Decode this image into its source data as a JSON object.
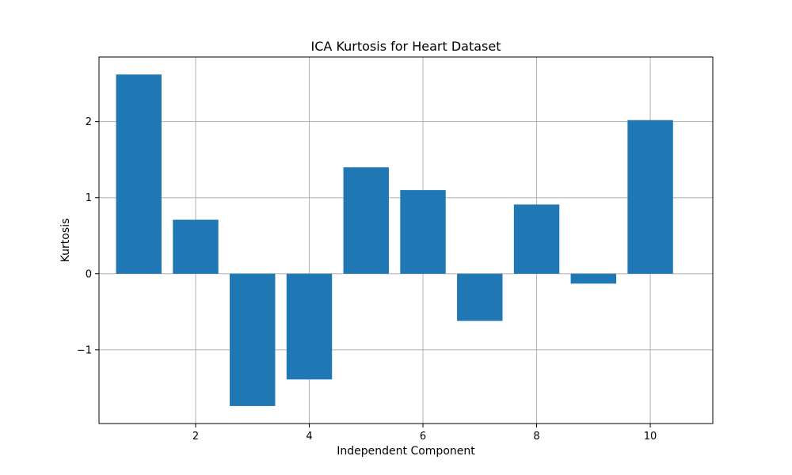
{
  "chart_data": {
    "type": "bar",
    "title": "ICA Kurtosis for Heart Dataset",
    "xlabel": "Independent Component",
    "ylabel": "Kurtosis",
    "categories": [
      1,
      2,
      3,
      4,
      5,
      6,
      7,
      8,
      9,
      10
    ],
    "values": [
      2.62,
      0.71,
      -1.74,
      -1.39,
      1.4,
      1.1,
      -0.62,
      0.91,
      -0.13,
      2.02
    ],
    "xlim": [
      0.3,
      11.1
    ],
    "ylim": [
      -1.97,
      2.85
    ],
    "xticks": [
      2,
      4,
      6,
      8,
      10
    ],
    "xtick_labels": [
      "2",
      "4",
      "6",
      "8",
      "10"
    ],
    "yticks": [
      -1,
      0,
      1,
      2
    ],
    "ytick_labels": [
      "−1",
      "0",
      "1",
      "2"
    ],
    "grid": true,
    "bar_color": "#1f77b4",
    "grid_color": "#b0b0b0",
    "axis_color": "#000000"
  }
}
